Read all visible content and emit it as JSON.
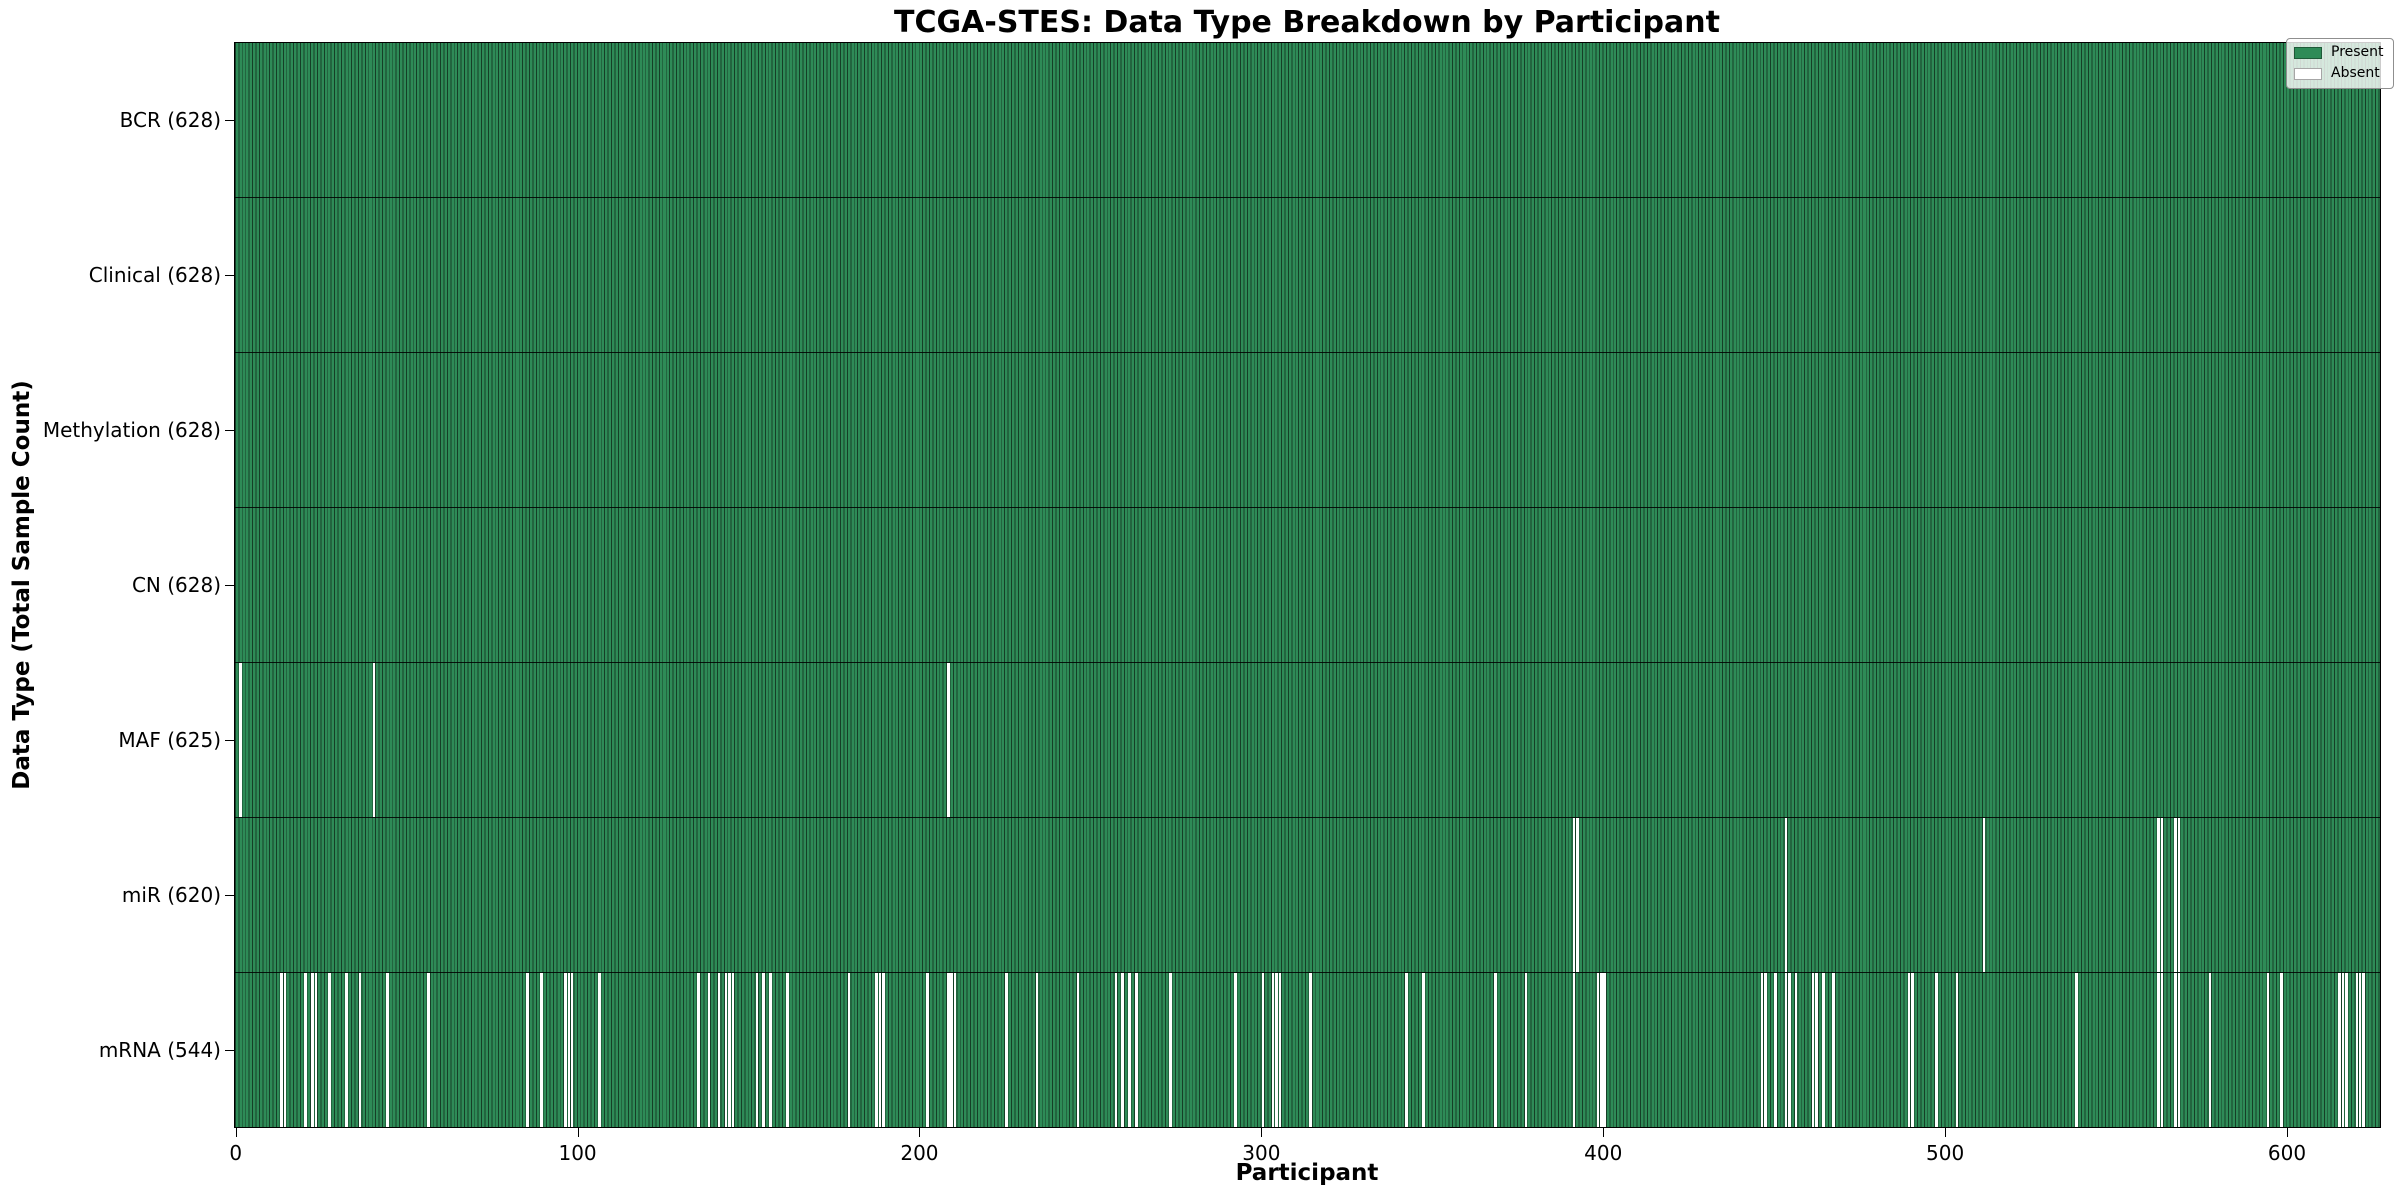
{
  "chart_data": {
    "type": "heatmap",
    "title": "TCGA-STES: Data Type Breakdown by Participant",
    "xlabel": "Participant",
    "ylabel": "Data Type (Total Sample Count)",
    "n_participants": 628,
    "xlim": [
      -0.5,
      627.5
    ],
    "x_ticks": [
      0,
      100,
      200,
      300,
      400,
      500,
      600
    ],
    "grid": false,
    "colors": {
      "present": "#2e8b57",
      "absent": "#ffffff",
      "bar_edge": "rgba(0,0,0,0.55)",
      "row_separator": "rgba(0,0,0,0.85)"
    },
    "legend": {
      "position": "upper right",
      "items": [
        {
          "label": "Present",
          "color": "#2e8b57"
        },
        {
          "label": "Absent",
          "color": "#ffffff"
        }
      ]
    },
    "rows": [
      {
        "data_type": "BCR",
        "label": "BCR (628)",
        "total": 628,
        "absent_participants": []
      },
      {
        "data_type": "Clinical",
        "label": "Clinical (628)",
        "total": 628,
        "absent_participants": []
      },
      {
        "data_type": "Methylation",
        "label": "Methylation (628)",
        "total": 628,
        "absent_participants": []
      },
      {
        "data_type": "CN",
        "label": "CN (628)",
        "total": 628,
        "absent_participants": []
      },
      {
        "data_type": "MAF",
        "label": "MAF (625)",
        "total": 625,
        "absent_participants": [
          1,
          40,
          208
        ]
      },
      {
        "data_type": "miR",
        "label": "miR (620)",
        "total": 620,
        "absent_participants": [
          391,
          392,
          453,
          511,
          562,
          563,
          567,
          568
        ]
      },
      {
        "data_type": "mRNA",
        "label": "mRNA (544)",
        "total": 544,
        "absent_participants": [
          13,
          14,
          20,
          22,
          23,
          27,
          32,
          36,
          44,
          56,
          85,
          89,
          96,
          97,
          98,
          106,
          135,
          138,
          141,
          143,
          144,
          145,
          152,
          154,
          156,
          161,
          179,
          187,
          188,
          189,
          202,
          208,
          209,
          210,
          225,
          234,
          246,
          257,
          259,
          261,
          263,
          273,
          292,
          300,
          303,
          304,
          305,
          314,
          342,
          347,
          368,
          377,
          391,
          398,
          399,
          400,
          446,
          447,
          450,
          453,
          454,
          456,
          461,
          462,
          464,
          467,
          489,
          490,
          497,
          503,
          538,
          562,
          563,
          567,
          568,
          577,
          594,
          598,
          615,
          616,
          617,
          620,
          621,
          622
        ]
      }
    ]
  }
}
